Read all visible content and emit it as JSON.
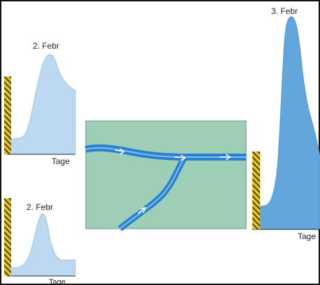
{
  "colors": {
    "hydrograph_light_fill": "#bcd9f1",
    "hydrograph_light_stroke": "#9cc4e4",
    "hydrograph_dark_fill": "#62a6dc",
    "hydrograph_dark_stroke": "#4f97d2",
    "gauge_yellow": "#e6c21a",
    "gauge_black": "#2a2a2a",
    "catchment_green": "#9ccfb5",
    "river_blue": "#2b7fd0",
    "river_light": "#7fc0ee",
    "frame": "#111111"
  },
  "hydrograph_top_left": {
    "peak_label": "2. Febr",
    "axis_label": "Tage"
  },
  "hydrograph_bottom_left": {
    "peak_label": "2. Febr",
    "axis_label": "Tage"
  },
  "hydrograph_right": {
    "peak_label": "3. Febr",
    "axis_label": "Tage"
  },
  "catchment": {
    "description_icon": "river-confluence-icon"
  }
}
